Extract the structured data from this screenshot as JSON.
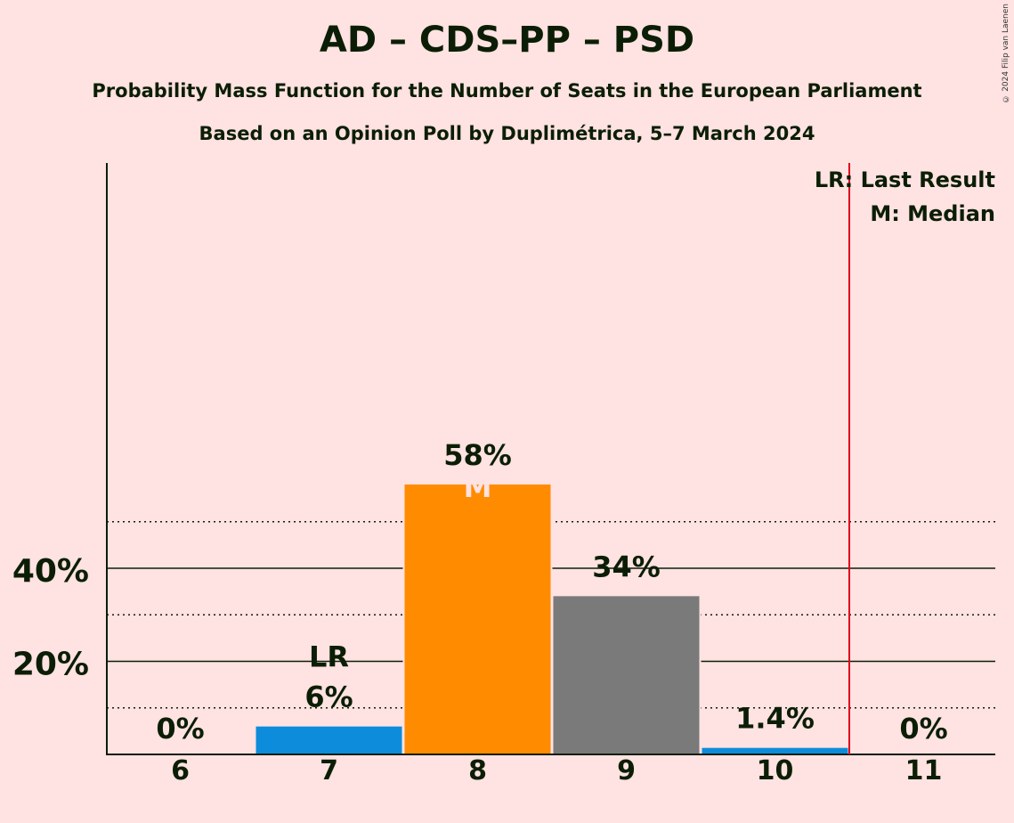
{
  "title": "AD – CDS–PP – PSD",
  "subtitle": "Probability Mass Function for the Number of Seats in the European Parliament",
  "subtitle2": "Based on an Opinion Poll by Duplimétrica, 5–7 March 2024",
  "copyright": "© 2024 Filip van Laenen",
  "chart_data": {
    "type": "bar",
    "categories": [
      "6",
      "7",
      "8",
      "9",
      "10",
      "11"
    ],
    "values": [
      0,
      6,
      58,
      34,
      1.4,
      0
    ],
    "value_labels": [
      "0%",
      "6%",
      "58%",
      "34%",
      "1.4%",
      "0%"
    ],
    "bar_colors": [
      "#0C8CDA",
      "#0C8CDA",
      "#FF8B00",
      "#7A7A7A",
      "#0C8CDA",
      "#0C8CDA"
    ],
    "ylim": [
      0,
      60
    ],
    "y_ticks": [
      20,
      40
    ],
    "y_tick_labels": [
      "20%",
      "40%"
    ],
    "minor_gridlines": [
      10,
      30,
      50
    ],
    "last_result": {
      "category": "7",
      "marker": "LR"
    },
    "median": {
      "category": "8",
      "marker": "M"
    },
    "last_result_line": {
      "after_category": "10",
      "color": "#E0001B"
    },
    "legend": {
      "position": "top-right",
      "items": [
        "LR: Last Result",
        "M: Median"
      ]
    }
  }
}
